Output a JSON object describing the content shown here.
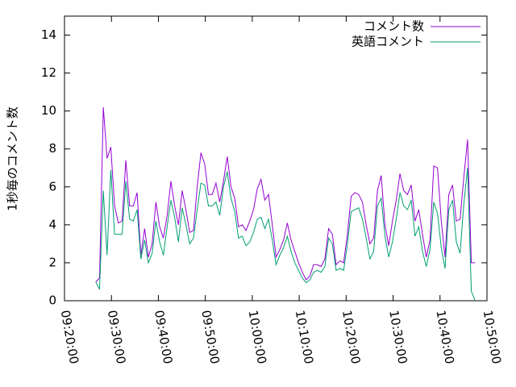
{
  "chart_data": {
    "type": "line",
    "ylabel": "1秒毎のコメント数",
    "x": [
      "09:26:40",
      "09:27:28",
      "09:28:16",
      "09:29:04",
      "09:29:52",
      "09:30:40",
      "09:31:28",
      "09:32:16",
      "09:33:04",
      "09:33:52",
      "09:34:40",
      "09:35:28",
      "09:36:16",
      "09:37:04",
      "09:37:52",
      "09:38:40",
      "09:39:28",
      "09:40:16",
      "09:41:04",
      "09:41:52",
      "09:42:40",
      "09:43:28",
      "09:44:16",
      "09:45:04",
      "09:45:52",
      "09:46:40",
      "09:47:28",
      "09:48:16",
      "09:49:04",
      "09:49:52",
      "09:50:40",
      "09:51:28",
      "09:52:16",
      "09:53:04",
      "09:53:52",
      "09:54:40",
      "09:55:28",
      "09:56:16",
      "09:57:04",
      "09:57:52",
      "09:58:40",
      "09:59:28",
      "10:00:16",
      "10:01:04",
      "10:01:52",
      "10:02:40",
      "10:03:28",
      "10:04:16",
      "10:05:04",
      "10:05:52",
      "10:06:40",
      "10:07:28",
      "10:08:16",
      "10:09:04",
      "10:09:52",
      "10:10:40",
      "10:11:28",
      "10:12:16",
      "10:13:04",
      "10:13:52",
      "10:14:40",
      "10:15:28",
      "10:16:16",
      "10:17:04",
      "10:17:52",
      "10:18:40",
      "10:19:28",
      "10:20:16",
      "10:21:04",
      "10:21:52",
      "10:22:40",
      "10:23:28",
      "10:24:16",
      "10:25:04",
      "10:25:52",
      "10:26:40",
      "10:27:28",
      "10:28:16",
      "10:29:04",
      "10:29:52",
      "10:30:40",
      "10:31:28",
      "10:32:16",
      "10:33:04",
      "10:33:52",
      "10:34:40",
      "10:35:28",
      "10:36:16",
      "10:37:04",
      "10:37:52",
      "10:38:40",
      "10:39:28",
      "10:40:16",
      "10:41:04",
      "10:41:52",
      "10:42:40",
      "10:43:28",
      "10:44:16",
      "10:45:04",
      "10:45:52",
      "10:46:40",
      "10:47:28"
    ],
    "series": [
      {
        "name": "コメント数",
        "color": "#9400d3",
        "values": [
          1.0,
          1.2,
          10.2,
          7.5,
          8.1,
          5.0,
          4.1,
          4.2,
          7.4,
          5.0,
          5.0,
          5.7,
          2.4,
          3.8,
          2.3,
          3.0,
          5.2,
          3.9,
          3.3,
          4.5,
          6.3,
          5.0,
          4.0,
          5.8,
          4.8,
          3.6,
          3.7,
          6.0,
          7.8,
          7.2,
          5.6,
          5.6,
          6.2,
          5.2,
          6.3,
          7.6,
          6.0,
          5.4,
          3.9,
          4.0,
          3.7,
          4.2,
          4.8,
          5.9,
          6.4,
          5.3,
          5.6,
          4.0,
          2.3,
          2.7,
          3.2,
          4.1,
          3.2,
          2.6,
          2.0,
          1.5,
          1.1,
          1.3,
          1.9,
          1.9,
          1.8,
          2.2,
          3.8,
          3.5,
          1.9,
          2.1,
          2.0,
          3.5,
          5.5,
          5.7,
          5.6,
          5.2,
          4.0,
          3.0,
          3.3,
          5.8,
          6.6,
          4.0,
          2.9,
          4.2,
          5.3,
          6.7,
          5.8,
          5.6,
          6.1,
          4.2,
          4.8,
          3.5,
          2.3,
          3.2,
          7.1,
          7.0,
          4.2,
          2.3,
          5.6,
          6.1,
          4.2,
          4.3,
          6.5,
          8.5,
          2.0,
          2.0
        ]
      },
      {
        "name": "英語コメント",
        "color": "#009e73",
        "values": [
          1.0,
          0.6,
          5.8,
          2.4,
          6.9,
          3.5,
          3.5,
          3.5,
          6.3,
          4.3,
          4.2,
          4.8,
          2.2,
          3.2,
          2.0,
          2.5,
          4.2,
          3.1,
          2.4,
          3.9,
          5.3,
          4.4,
          3.1,
          4.9,
          4.0,
          3.0,
          3.3,
          4.8,
          6.2,
          6.1,
          5.0,
          5.0,
          5.2,
          4.5,
          6.0,
          6.8,
          5.4,
          4.7,
          3.3,
          3.4,
          2.9,
          3.1,
          3.6,
          4.3,
          4.4,
          3.8,
          4.3,
          3.2,
          1.9,
          2.4,
          2.8,
          3.4,
          2.6,
          2.0,
          1.6,
          1.2,
          0.95,
          1.1,
          1.5,
          1.6,
          1.5,
          1.8,
          3.3,
          3.0,
          1.6,
          1.7,
          1.6,
          3.0,
          4.7,
          4.8,
          4.9,
          4.3,
          3.3,
          2.2,
          2.6,
          5.0,
          5.4,
          3.4,
          2.3,
          3.1,
          4.3,
          5.7,
          5.0,
          4.8,
          5.3,
          3.4,
          3.9,
          2.6,
          1.8,
          2.7,
          5.2,
          4.6,
          2.8,
          1.7,
          4.8,
          5.3,
          3.1,
          2.5,
          5.1,
          7.0,
          0.5,
          0.0
        ]
      }
    ],
    "xlim": [
      "09:20:00",
      "10:50:00"
    ],
    "xticks": [
      "09:20:00",
      "09:30:00",
      "09:40:00",
      "09:50:00",
      "10:00:00",
      "10:10:00",
      "10:20:00",
      "10:30:00",
      "10:40:00",
      "10:50:00"
    ],
    "ylim": [
      0,
      15
    ],
    "yticks": [
      0,
      2,
      4,
      6,
      8,
      10,
      12,
      14
    ],
    "legend": "top-right"
  }
}
